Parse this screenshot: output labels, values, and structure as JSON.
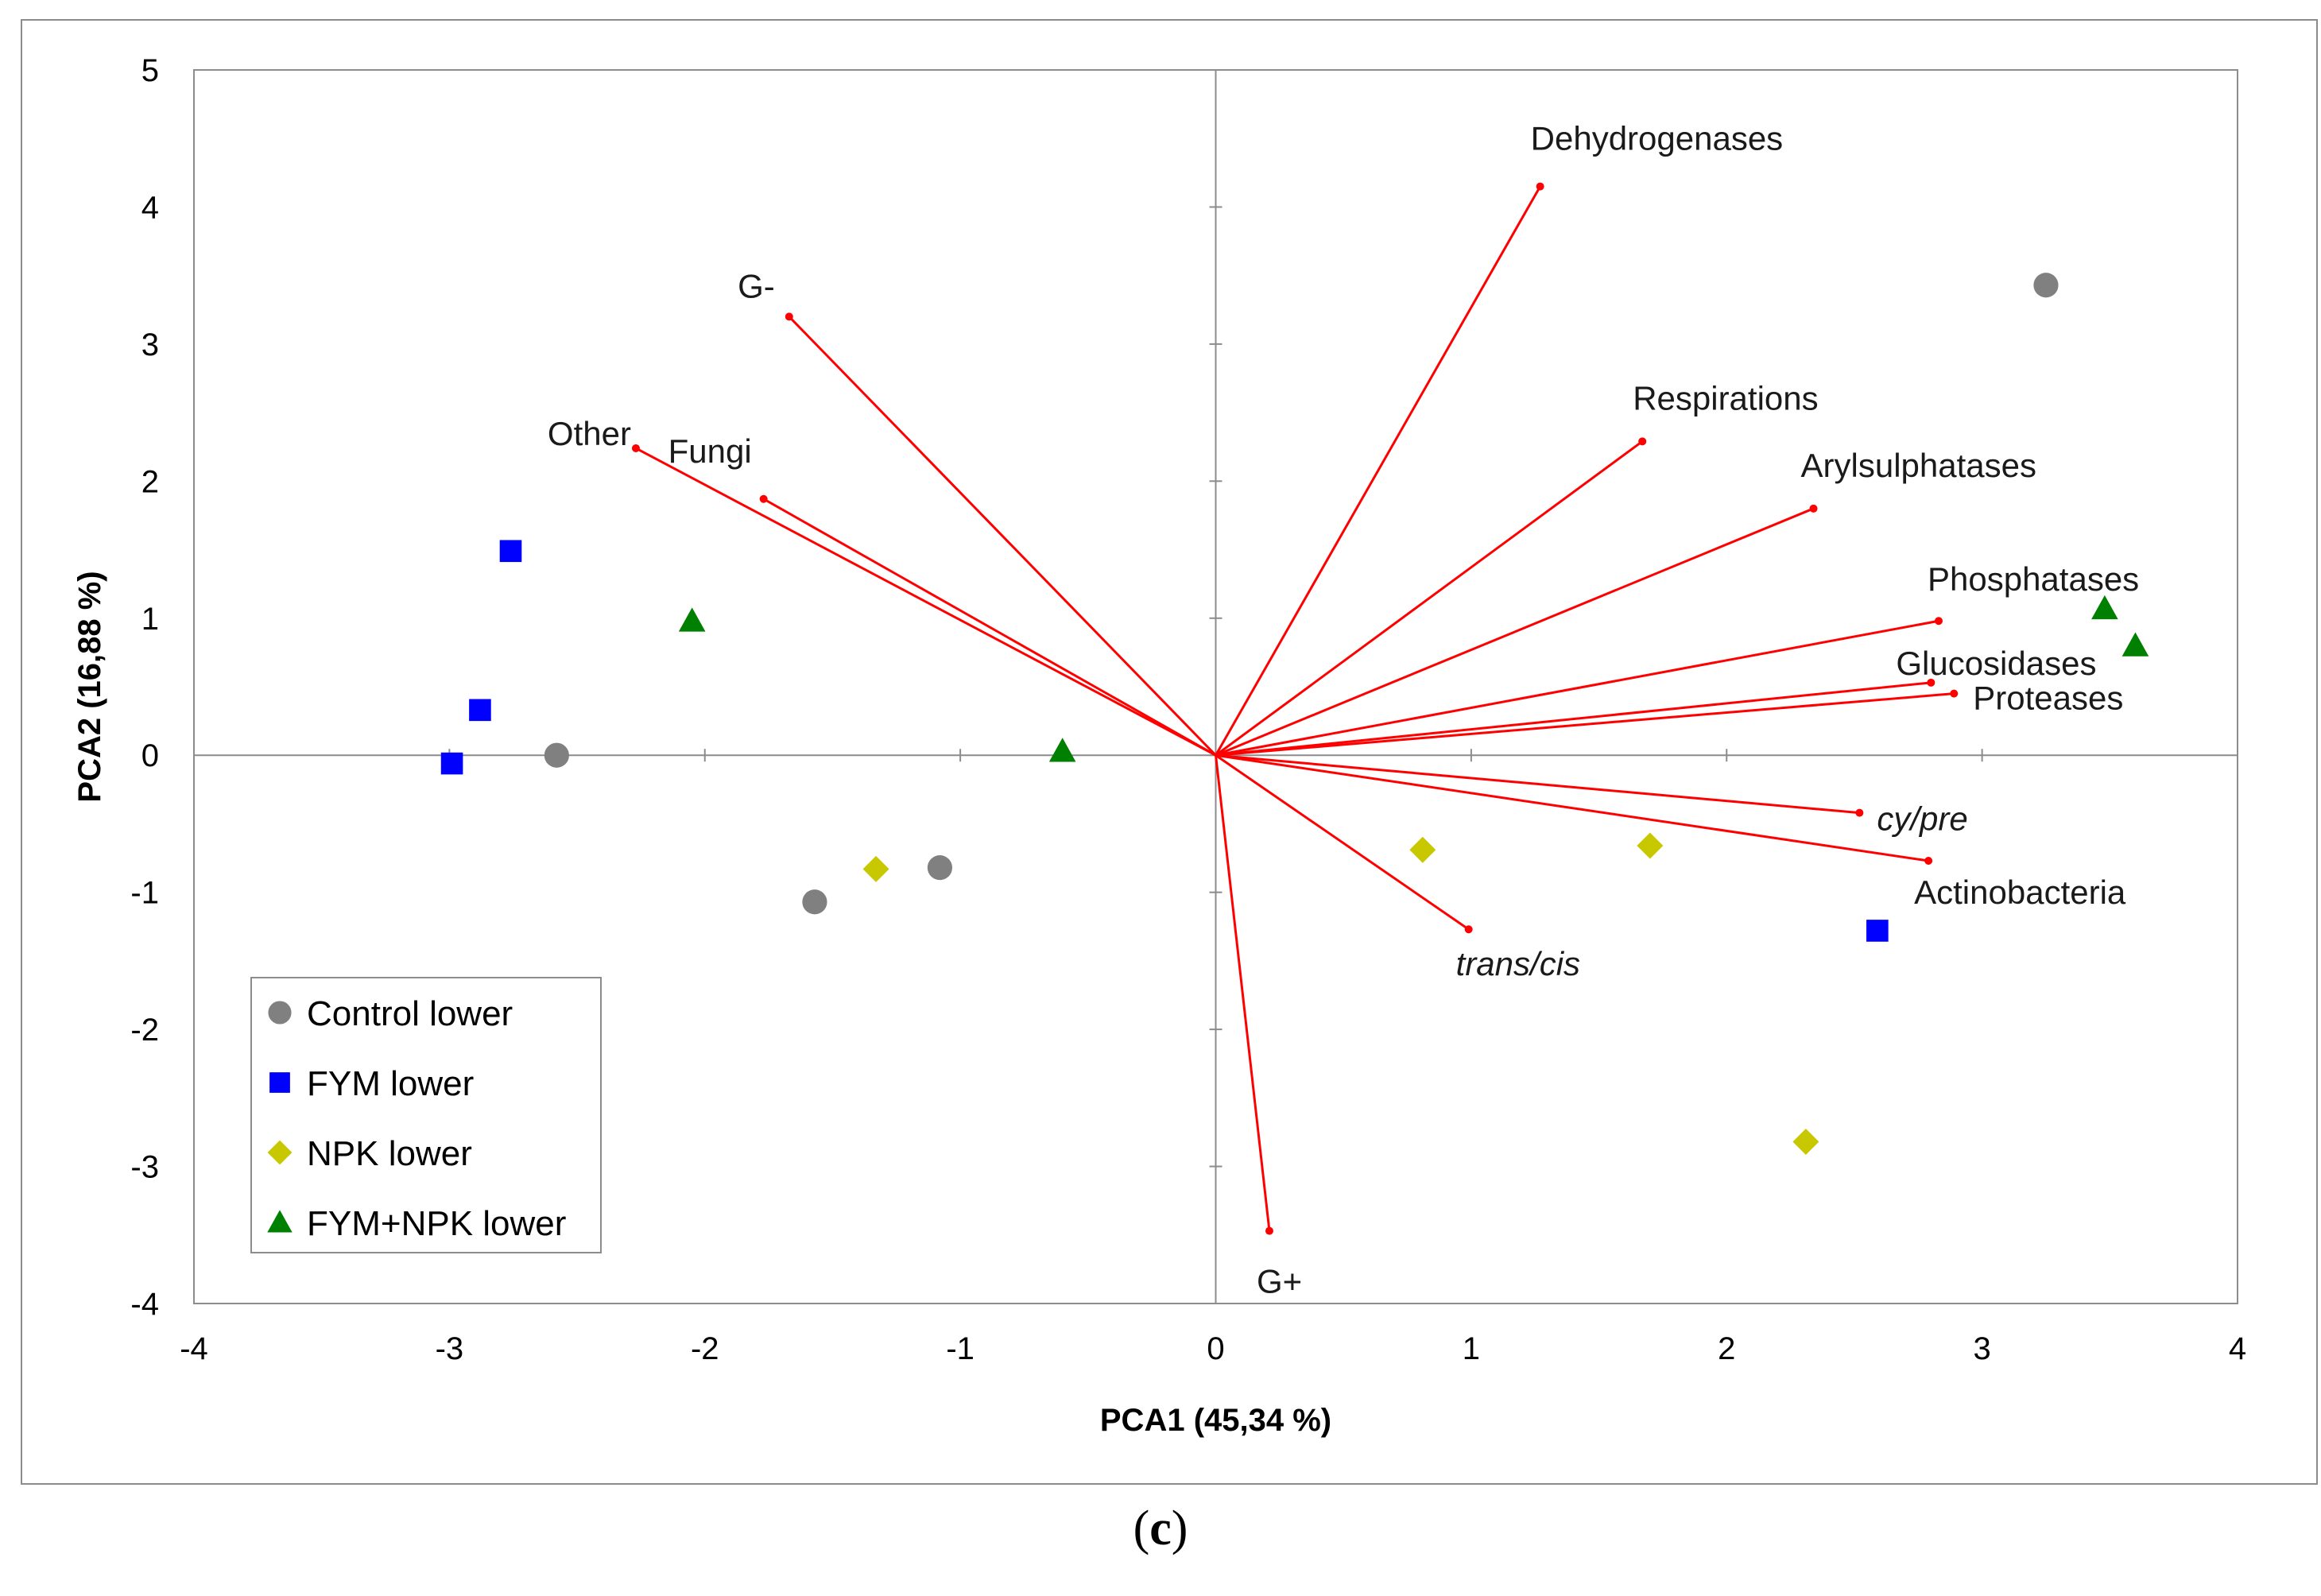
{
  "chart_data": {
    "type": "scatter",
    "xlabel": "PCA1 (45,34 %)",
    "ylabel": "PCA2 (16,88 %)",
    "xlim": [
      -4,
      4
    ],
    "ylim": [
      -4,
      5
    ],
    "xticks": [
      "-4",
      "-3",
      "-2",
      "-1",
      "0",
      "1",
      "2",
      "3",
      "4"
    ],
    "yticks": [
      "-4",
      "-3",
      "-2",
      "-1",
      "0",
      "1",
      "2",
      "3",
      "4",
      "5"
    ],
    "grid": false,
    "legend_position": "bottom-left",
    "vectors": [
      {
        "name": "Dehydrogenases",
        "x": 1.27,
        "y": 4.15,
        "italic": false
      },
      {
        "name": "G-",
        "x": -1.67,
        "y": 3.2,
        "italic": false
      },
      {
        "name": "Respirations",
        "x": 1.67,
        "y": 2.29,
        "italic": false
      },
      {
        "name": "Other",
        "x": -2.27,
        "y": 2.24,
        "italic": false
      },
      {
        "name": "Fungi",
        "x": -1.77,
        "y": 1.87,
        "italic": false
      },
      {
        "name": "Arylsulphatases",
        "x": 2.34,
        "y": 1.8,
        "italic": false
      },
      {
        "name": "Phosphatases",
        "x": 2.83,
        "y": 0.98,
        "italic": false
      },
      {
        "name": "Glucosidases",
        "x": 2.8,
        "y": 0.53,
        "italic": false
      },
      {
        "name": "Proteases",
        "x": 2.89,
        "y": 0.45,
        "italic": false
      },
      {
        "name": "cy/pre",
        "x": 2.52,
        "y": -0.42,
        "italic": true
      },
      {
        "name": "Actinobacteria",
        "x": 2.79,
        "y": -0.77,
        "italic": false
      },
      {
        "name": "trans/cis",
        "x": 0.99,
        "y": -1.27,
        "italic": true
      },
      {
        "name": "G+",
        "x": 0.21,
        "y": -3.47,
        "italic": false
      }
    ],
    "series": [
      {
        "name": "Control lower",
        "marker": "circle",
        "color": "#808080",
        "points": [
          [
            -2.58,
            0.0
          ],
          [
            -1.57,
            -1.07
          ],
          [
            -1.08,
            -0.82
          ],
          [
            3.25,
            3.43
          ]
        ]
      },
      {
        "name": "FYM lower",
        "marker": "square",
        "color": "#0000ff",
        "points": [
          [
            -2.76,
            1.49
          ],
          [
            -2.88,
            0.33
          ],
          [
            -2.99,
            -0.06
          ],
          [
            2.59,
            -1.28
          ]
        ]
      },
      {
        "name": "NPK lower",
        "marker": "diamond",
        "color": "#c8c800",
        "points": [
          [
            -1.33,
            -0.83
          ],
          [
            0.81,
            -0.69
          ],
          [
            1.7,
            -0.66
          ],
          [
            2.31,
            -2.82
          ]
        ]
      },
      {
        "name": "FYM+NPK lower",
        "marker": "triangle",
        "color": "#008000",
        "points": [
          [
            -2.05,
            0.98
          ],
          [
            -0.6,
            0.03
          ],
          [
            3.48,
            1.07
          ],
          [
            3.6,
            0.8
          ]
        ]
      }
    ]
  },
  "caption": {
    "open": "(",
    "letter": "c",
    "close": ")"
  }
}
